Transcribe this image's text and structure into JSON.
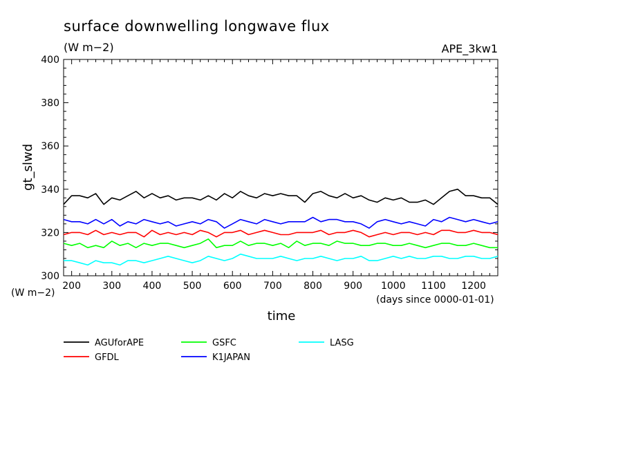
{
  "chart_data": {
    "type": "line",
    "title": "surface downwelling longwave flux",
    "subtitle": "(W m−2)",
    "experiment": "APE_3kw1",
    "xlabel": "time",
    "xunits": "(days since 0000-01-01)",
    "ylabel": "gt_slwd",
    "yunits": "(W m−2)",
    "xlim": [
      180,
      1260
    ],
    "ylim": [
      300,
      400
    ],
    "xticks": [
      200,
      300,
      400,
      500,
      600,
      700,
      800,
      900,
      1000,
      1100,
      1200
    ],
    "yticks": [
      300,
      320,
      340,
      360,
      380,
      400
    ],
    "grid": false,
    "legend_position": "bottom",
    "series": [
      {
        "name": "AGUforAPE",
        "color": "#000000",
        "x": [
          180,
          200,
          220,
          240,
          260,
          280,
          300,
          320,
          340,
          360,
          380,
          400,
          420,
          440,
          460,
          480,
          500,
          520,
          540,
          560,
          580,
          600,
          620,
          640,
          660,
          680,
          700,
          720,
          740,
          760,
          780,
          800,
          820,
          840,
          860,
          880,
          900,
          920,
          940,
          960,
          980,
          1000,
          1020,
          1040,
          1060,
          1080,
          1100,
          1120,
          1140,
          1160,
          1180,
          1200,
          1220,
          1240,
          1260
        ],
        "y": [
          333,
          337,
          337,
          336,
          338,
          333,
          336,
          335,
          337,
          339,
          336,
          338,
          336,
          337,
          335,
          336,
          336,
          335,
          337,
          335,
          338,
          336,
          339,
          337,
          336,
          338,
          337,
          338,
          337,
          337,
          334,
          338,
          339,
          337,
          336,
          338,
          336,
          337,
          335,
          334,
          336,
          335,
          336,
          334,
          334,
          335,
          333,
          336,
          339,
          340,
          337,
          337,
          336,
          336,
          333
        ]
      },
      {
        "name": "GFDL",
        "color": "#ff0000",
        "x": [
          180,
          200,
          220,
          240,
          260,
          280,
          300,
          320,
          340,
          360,
          380,
          400,
          420,
          440,
          460,
          480,
          500,
          520,
          540,
          560,
          580,
          600,
          620,
          640,
          660,
          680,
          700,
          720,
          740,
          760,
          780,
          800,
          820,
          840,
          860,
          880,
          900,
          920,
          940,
          960,
          980,
          1000,
          1020,
          1040,
          1060,
          1080,
          1100,
          1120,
          1140,
          1160,
          1180,
          1200,
          1220,
          1240,
          1260
        ],
        "y": [
          319,
          320,
          320,
          319,
          321,
          319,
          320,
          319,
          320,
          320,
          318,
          321,
          319,
          320,
          319,
          320,
          319,
          321,
          320,
          318,
          320,
          320,
          321,
          319,
          320,
          321,
          320,
          319,
          319,
          320,
          320,
          320,
          321,
          319,
          320,
          320,
          321,
          320,
          318,
          319,
          320,
          319,
          320,
          320,
          319,
          320,
          319,
          321,
          321,
          320,
          320,
          321,
          320,
          320,
          319
        ]
      },
      {
        "name": "GSFC",
        "color": "#00ff00",
        "x": [
          180,
          200,
          220,
          240,
          260,
          280,
          300,
          320,
          340,
          360,
          380,
          400,
          420,
          440,
          460,
          480,
          500,
          520,
          540,
          560,
          580,
          600,
          620,
          640,
          660,
          680,
          700,
          720,
          740,
          760,
          780,
          800,
          820,
          840,
          860,
          880,
          900,
          920,
          940,
          960,
          980,
          1000,
          1020,
          1040,
          1060,
          1080,
          1100,
          1120,
          1140,
          1160,
          1180,
          1200,
          1220,
          1240,
          1260
        ],
        "y": [
          315,
          314,
          315,
          313,
          314,
          313,
          316,
          314,
          315,
          313,
          315,
          314,
          315,
          315,
          314,
          313,
          314,
          315,
          317,
          313,
          314,
          314,
          316,
          314,
          315,
          315,
          314,
          315,
          313,
          316,
          314,
          315,
          315,
          314,
          316,
          315,
          315,
          314,
          314,
          315,
          315,
          314,
          314,
          315,
          314,
          313,
          314,
          315,
          315,
          314,
          314,
          315,
          314,
          313,
          313
        ]
      },
      {
        "name": "K1JAPAN",
        "color": "#0000ff",
        "x": [
          180,
          200,
          220,
          240,
          260,
          280,
          300,
          320,
          340,
          360,
          380,
          400,
          420,
          440,
          460,
          480,
          500,
          520,
          540,
          560,
          580,
          600,
          620,
          640,
          660,
          680,
          700,
          720,
          740,
          760,
          780,
          800,
          820,
          840,
          860,
          880,
          900,
          920,
          940,
          960,
          980,
          1000,
          1020,
          1040,
          1060,
          1080,
          1100,
          1120,
          1140,
          1160,
          1180,
          1200,
          1220,
          1240,
          1260
        ],
        "y": [
          326,
          325,
          325,
          324,
          326,
          324,
          326,
          323,
          325,
          324,
          326,
          325,
          324,
          325,
          323,
          324,
          325,
          324,
          326,
          325,
          322,
          324,
          326,
          325,
          324,
          326,
          325,
          324,
          325,
          325,
          325,
          327,
          325,
          326,
          326,
          325,
          325,
          324,
          322,
          325,
          326,
          325,
          324,
          325,
          324,
          323,
          326,
          325,
          327,
          326,
          325,
          326,
          325,
          324,
          325
        ]
      },
      {
        "name": "LASG",
        "color": "#00ffff",
        "x": [
          180,
          200,
          220,
          240,
          260,
          280,
          300,
          320,
          340,
          360,
          380,
          400,
          420,
          440,
          460,
          480,
          500,
          520,
          540,
          560,
          580,
          600,
          620,
          640,
          660,
          680,
          700,
          720,
          740,
          760,
          780,
          800,
          820,
          840,
          860,
          880,
          900,
          920,
          940,
          960,
          980,
          1000,
          1020,
          1040,
          1060,
          1080,
          1100,
          1120,
          1140,
          1160,
          1180,
          1200,
          1220,
          1240,
          1260
        ],
        "y": [
          307,
          307,
          306,
          305,
          307,
          306,
          306,
          305,
          307,
          307,
          306,
          307,
          308,
          309,
          308,
          307,
          306,
          307,
          309,
          308,
          307,
          308,
          310,
          309,
          308,
          308,
          308,
          309,
          308,
          307,
          308,
          308,
          309,
          308,
          307,
          308,
          308,
          309,
          307,
          307,
          308,
          309,
          308,
          309,
          308,
          308,
          309,
          309,
          308,
          308,
          309,
          309,
          308,
          308,
          309
        ]
      }
    ]
  }
}
